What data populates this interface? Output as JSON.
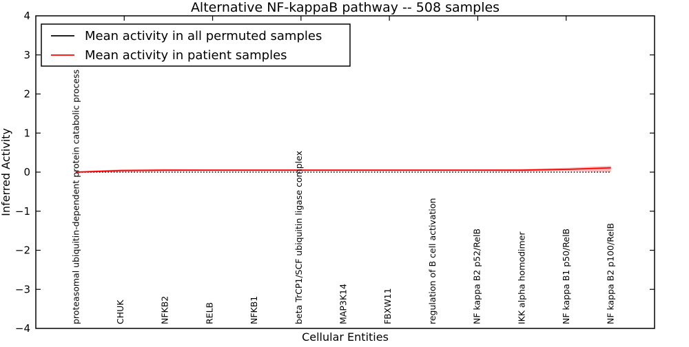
{
  "chart_data": {
    "type": "line",
    "title": "Alternative NF-kappaB pathway -- 508 samples",
    "xlabel": "Cellular Entities",
    "ylabel": "Inferred Activity",
    "ylim": [
      -4,
      4
    ],
    "yticks": [
      4,
      3,
      2,
      1,
      0,
      -1,
      -2,
      -3,
      -4
    ],
    "yticklabels": [
      "4",
      "3",
      "2",
      "1",
      "0",
      "−1",
      "−2",
      "−3",
      "−4"
    ],
    "grid": false,
    "legend_position": "upper left",
    "categories": [
      "proteasomal ubiquitin-dependent protein catabolic process",
      "CHUK",
      "NFKB2",
      "RELB",
      "NFKB1",
      "beta TrCP1/SCF ubiquitin ligase complex",
      "MAP3K14",
      "FBXW11",
      "regulation of B cell activation",
      "NF kappa B2 p52/RelB",
      "IKK alpha homodimer",
      "NF kappa B1 p50/RelB",
      "NF kappa B2 p100/RelB"
    ],
    "series": [
      {
        "name": "Mean activity in all permuted samples",
        "color": "#000000",
        "plot_line_style": "dotted",
        "values": [
          0,
          0,
          0,
          0,
          0,
          0,
          0,
          0,
          0,
          0,
          0,
          0,
          0
        ]
      },
      {
        "name": "Mean activity in patient samples",
        "color": "#ff0000",
        "plot_line_style": "solid",
        "values": [
          0.0,
          0.04,
          0.05,
          0.05,
          0.05,
          0.05,
          0.05,
          0.05,
          0.05,
          0.05,
          0.05,
          0.07,
          0.11
        ],
        "band_upper": [
          0.02,
          0.07,
          0.08,
          0.07,
          0.07,
          0.07,
          0.07,
          0.07,
          0.07,
          0.07,
          0.08,
          0.11,
          0.16
        ],
        "band_lower": [
          -0.02,
          0.01,
          0.02,
          0.03,
          0.03,
          0.03,
          0.03,
          0.03,
          0.03,
          0.03,
          0.02,
          0.03,
          0.0
        ],
        "band_color": "#ff0000",
        "band_opacity": 0.28
      }
    ]
  }
}
